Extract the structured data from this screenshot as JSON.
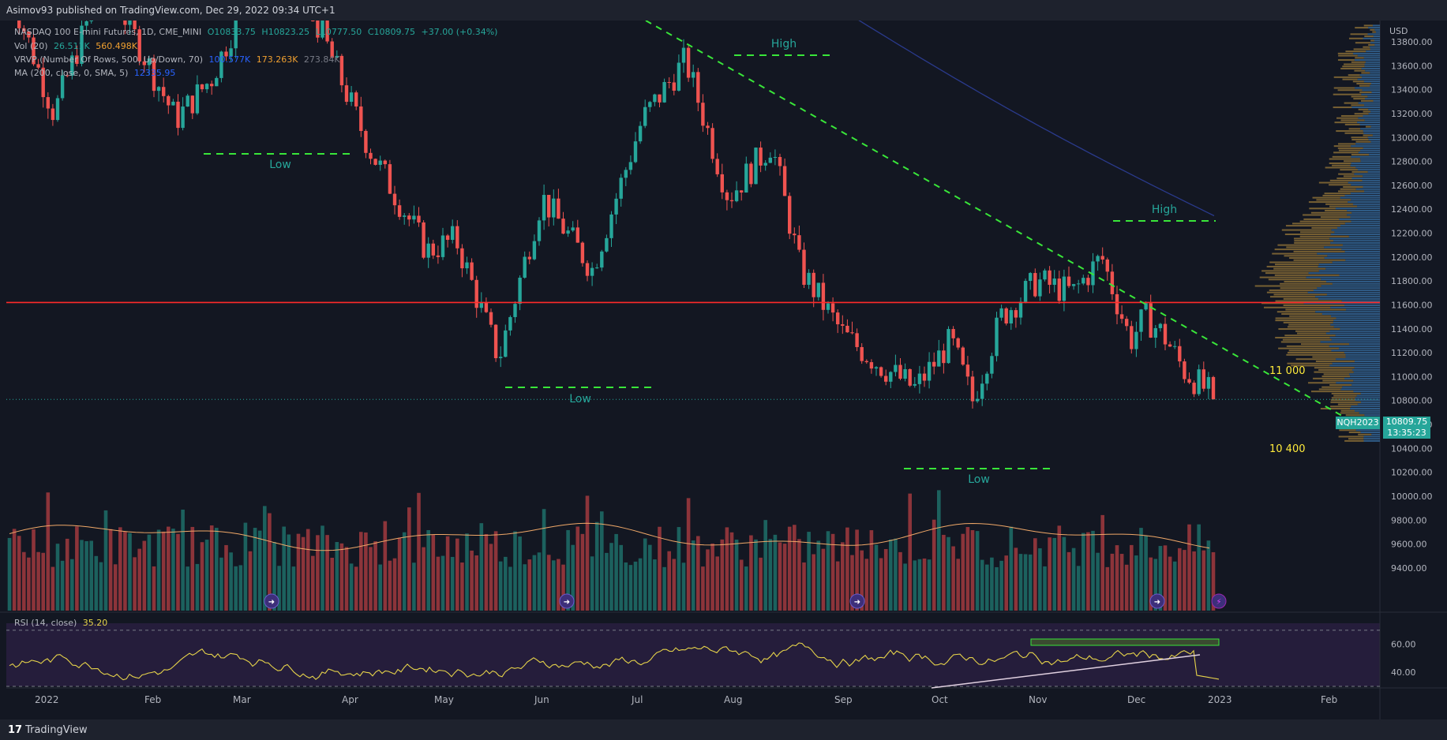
{
  "header": {
    "published": "Asimov93 published on TradingView.com, Dec 29, 2022 09:34 UTC+1"
  },
  "legend": {
    "main": {
      "name": "NASDAQ 100 E-mini Futures, 1D, CME_MINI",
      "o": "O10833.75",
      "h": "H10823.25",
      "l": "L10777.50",
      "c": "C10809.75",
      "chg": "+37.00 (+0.34%)"
    },
    "vol": {
      "name": "Vol (20)",
      "v1": "26.511K",
      "v2": "560.498K"
    },
    "vrvp": {
      "name": "VRVP (Number Of Rows, 500, Up/Down, 70)",
      "v1": "100.577K",
      "v2": "173.263K",
      "v3": "273.84K"
    },
    "ma": {
      "name": "MA (200, close, 0, SMA, 5)",
      "v1": "12335.95"
    },
    "rsi": {
      "name": "RSI (14, close)",
      "v1": "35.20"
    }
  },
  "price_axis": {
    "currency": "USD",
    "ticks": [
      "13800.00",
      "13600.00",
      "13400.00",
      "13200.00",
      "13000.00",
      "12800.00",
      "12600.00",
      "12400.00",
      "12200.00",
      "12000.00",
      "11800.00",
      "11600.00",
      "11400.00",
      "11200.00",
      "11000.00",
      "10800.00",
      "10600.00",
      "10400.00",
      "10200.00",
      "10000.00",
      "9800.00",
      "9600.00",
      "9400.00"
    ],
    "last_price": "10809.75",
    "symbol": "NQH2023",
    "countdown": "13:35:23"
  },
  "rsi_axis": {
    "ticks": [
      "60.00",
      "40.00"
    ]
  },
  "time_axis": {
    "labels": [
      "2022",
      "Feb",
      "Mar",
      "Apr",
      "May",
      "Jun",
      "Jul",
      "Aug",
      "Sep",
      "Oct",
      "Nov",
      "Dec",
      "2023",
      "Feb"
    ]
  },
  "annotations": {
    "high1": "High",
    "high2": "High",
    "low1": "Low",
    "low2": "Low",
    "low3": "Low",
    "level_11000": "11 000",
    "level_10400": "10 400"
  },
  "brand": {
    "logo": "17",
    "name": "TradingView"
  },
  "colors": {
    "up": "#26a69a",
    "down": "#ef5350",
    "bg": "#131722",
    "resistance": "#5b1a2b",
    "support": "#1f4d1f",
    "zone_border": "#4caf50",
    "trendline": "#39e639",
    "red_line": "#ff2a2a",
    "ma": "#2a3a8c",
    "rsi": "#e6d34a"
  },
  "chart_data": {
    "type": "candlestick",
    "title": "NASDAQ 100 E-mini Futures, 1D, CME_MINI",
    "ylabel": "USD",
    "ylim": [
      9300,
      13900
    ],
    "x": [
      "2022-01",
      "2022-02",
      "2022-03",
      "2022-04",
      "2022-05",
      "2022-06",
      "2022-07",
      "2022-08",
      "2022-09",
      "2022-10",
      "2022-11",
      "2022-12"
    ],
    "approx_close": [
      14200,
      14300,
      13000,
      13900,
      12300,
      11900,
      11200,
      12000,
      13500,
      12400,
      11200,
      10810
    ],
    "last_close": 10809.75,
    "zones": [
      {
        "kind": "resistance",
        "from": 13650,
        "to": 14000
      },
      {
        "kind": "resistance",
        "from": 12750,
        "to": 13050
      },
      {
        "kind": "resistance",
        "from": 12000,
        "to": 12270
      },
      {
        "kind": "support",
        "from": 10980,
        "to": 11150
      },
      {
        "kind": "support",
        "from": 10200,
        "to": 10530
      }
    ],
    "horizontal_line": 11620,
    "levels": [
      11000,
      10400
    ],
    "moving_average_200": 12335.95,
    "rsi": {
      "last": 35.2,
      "levels": [
        70,
        30
      ]
    }
  }
}
